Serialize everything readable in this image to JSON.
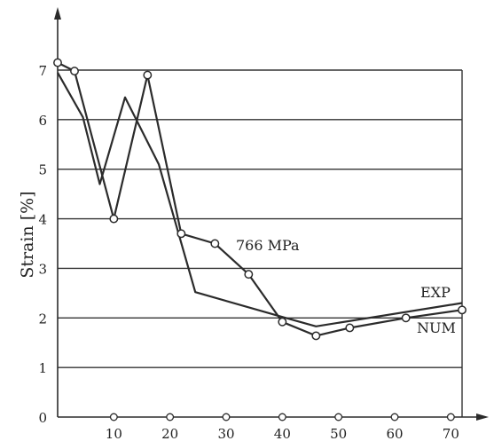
{
  "chart_data": {
    "type": "line",
    "xlabel": "",
    "ylabel": "Strain [%]",
    "xlim": [
      0,
      72
    ],
    "ylim": [
      0,
      7
    ],
    "x_ticks": [
      "10",
      "20",
      "30",
      "40",
      "50",
      "60",
      "70"
    ],
    "y_ticks": [
      "0",
      "1",
      "2",
      "3",
      "4",
      "5",
      "6",
      "7"
    ],
    "grid": "horizontal",
    "annotations": [
      "766 MPa"
    ],
    "series": [
      {
        "name": "EXP",
        "marker": "circle",
        "x": [
          0,
          3,
          10,
          16,
          22,
          28,
          34,
          40,
          46,
          52,
          62,
          72
        ],
        "y": [
          7.15,
          6.98,
          4.0,
          6.9,
          3.7,
          3.5,
          2.88,
          1.92,
          1.64,
          1.8,
          2.0,
          2.16
        ]
      },
      {
        "name": "NUM",
        "marker": "none",
        "x": [
          0,
          4.5,
          7.5,
          12,
          18,
          24.5,
          40,
          46,
          72
        ],
        "y": [
          6.95,
          6.05,
          4.7,
          6.45,
          5.1,
          2.52,
          2.02,
          1.83,
          2.3
        ]
      }
    ],
    "series_labels": [
      "EXP",
      "NUM"
    ],
    "x_axis_markers": [
      10,
      20,
      30,
      40,
      50,
      60,
      70
    ]
  },
  "colors": {
    "line": "#2b2b2b",
    "grid": "#333333",
    "background": "#ffffff"
  }
}
